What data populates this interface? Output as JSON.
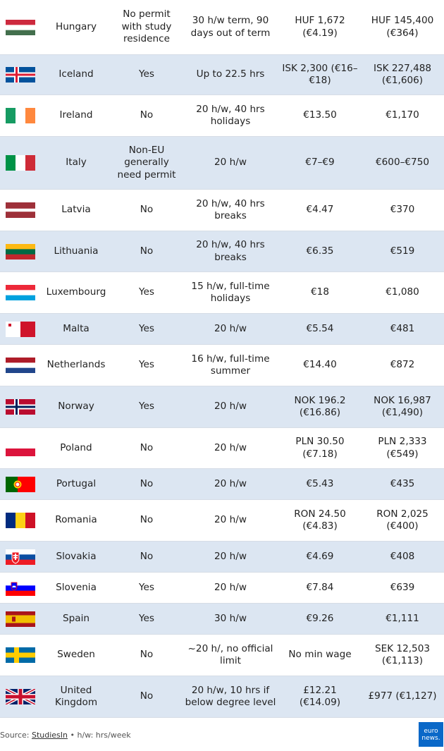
{
  "rows": [
    {
      "country": "Hungary",
      "flag": "hungary-flag",
      "permit": "No permit with study residence",
      "hours": "30 h/w term, 90 days out of term",
      "hourly": "HUF 1,672 (€4.19)",
      "monthly": "HUF 145,400 (€364)"
    },
    {
      "country": "Iceland",
      "flag": "iceland-flag",
      "permit": "Yes",
      "hours": "Up to 22.5 hrs",
      "hourly": "ISK 2,300 (€16–€18)",
      "monthly": "ISK 227,488 (€1,606)"
    },
    {
      "country": "Ireland",
      "flag": "ireland-flag",
      "permit": "No",
      "hours": "20 h/w, 40 hrs holidays",
      "hourly": "€13.50",
      "monthly": "€1,170"
    },
    {
      "country": "Italy",
      "flag": "italy-flag",
      "permit": "Non-EU generally need permit",
      "hours": "20 h/w",
      "hourly": "€7–€9",
      "monthly": "€600–€750"
    },
    {
      "country": "Latvia",
      "flag": "latvia-flag",
      "permit": "No",
      "hours": "20 h/w, 40 hrs breaks",
      "hourly": "€4.47",
      "monthly": "€370"
    },
    {
      "country": "Lithuania",
      "flag": "lithuania-flag",
      "permit": "No",
      "hours": "20 h/w, 40 hrs breaks",
      "hourly": "€6.35",
      "monthly": "€519"
    },
    {
      "country": "Luxembourg",
      "flag": "luxembourg-flag",
      "permit": "Yes",
      "hours": "15 h/w, full-time holidays",
      "hourly": "€18",
      "monthly": "€1,080"
    },
    {
      "country": "Malta",
      "flag": "malta-flag",
      "permit": "Yes",
      "hours": "20 h/w",
      "hourly": "€5.54",
      "monthly": "€481"
    },
    {
      "country": "Netherlands",
      "flag": "netherlands-flag",
      "permit": "Yes",
      "hours": "16 h/w, full-time summer",
      "hourly": "€14.40",
      "monthly": "€872"
    },
    {
      "country": "Norway",
      "flag": "norway-flag",
      "permit": "Yes",
      "hours": "20 h/w",
      "hourly": "NOK 196.2 (€16.86)",
      "monthly": "NOK 16,987 (€1,490)"
    },
    {
      "country": "Poland",
      "flag": "poland-flag",
      "permit": "No",
      "hours": "20 h/w",
      "hourly": "PLN 30.50 (€7.18)",
      "monthly": "PLN 2,333 (€549)"
    },
    {
      "country": "Portugal",
      "flag": "portugal-flag",
      "permit": "No",
      "hours": "20 h/w",
      "hourly": "€5.43",
      "monthly": "€435"
    },
    {
      "country": "Romania",
      "flag": "romania-flag",
      "permit": "No",
      "hours": "20 h/w",
      "hourly": "RON 24.50 (€4.83)",
      "monthly": "RON 2,025 (€400)"
    },
    {
      "country": "Slovakia",
      "flag": "slovakia-flag",
      "permit": "No",
      "hours": "20 h/w",
      "hourly": "€4.69",
      "monthly": "€408"
    },
    {
      "country": "Slovenia",
      "flag": "slovenia-flag",
      "permit": "Yes",
      "hours": "20 h/w",
      "hourly": "€7.84",
      "monthly": "€639"
    },
    {
      "country": "Spain",
      "flag": "spain-flag",
      "permit": "Yes",
      "hours": "30 h/w",
      "hourly": "€9.26",
      "monthly": "€1,111"
    },
    {
      "country": "Sweden",
      "flag": "sweden-flag",
      "permit": "No",
      "hours": "~20 h/, no official limit",
      "hourly": "No min wage",
      "monthly": "SEK 12,503 (€1,113)"
    },
    {
      "country": "United Kingdom",
      "flag": "united-kingdom-flag",
      "permit": "No",
      "hours": "20 h/w, 10 hrs if below degree level",
      "hourly": "£12.21 (€14.09)",
      "monthly": "£977 (€1,127)"
    }
  ],
  "footer": {
    "source_prefix": "Source: ",
    "source_link": "StudiesIn",
    "note": " • h/w: hrs/week"
  },
  "logo": {
    "line1": "euro",
    "line2": "news."
  },
  "colors": {
    "shaded_row": "#dce6f2",
    "row_divider": "#d6dde6",
    "logo_blue": "#0a68c8"
  }
}
